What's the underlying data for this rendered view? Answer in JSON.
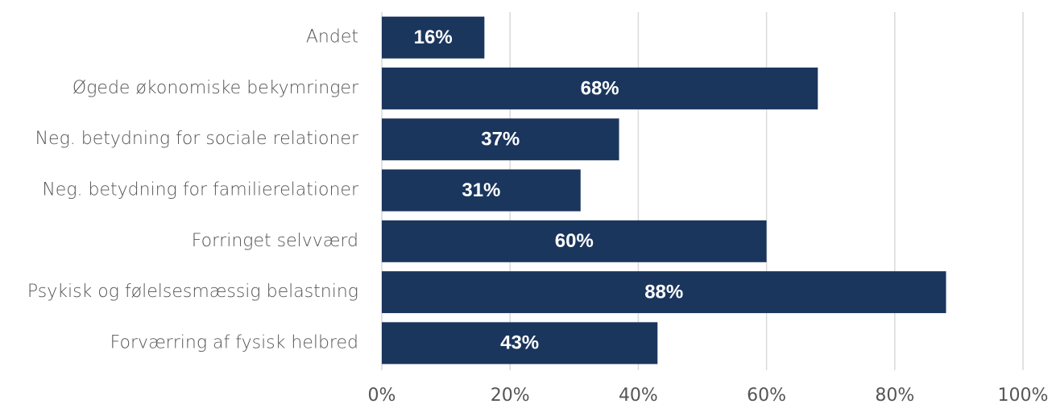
{
  "chart_data": {
    "type": "bar",
    "orientation": "horizontal",
    "categories": [
      "Andet",
      "Øgede økonomiske bekymringer",
      "Neg. betydning for sociale relationer",
      "Neg. betydning for familierelationer",
      "Forringet selvværd",
      "Psykisk og følelsesmæssig belastning",
      "Forværring af fysisk helbred"
    ],
    "values": [
      16,
      68,
      37,
      31,
      60,
      88,
      43
    ],
    "value_labels": [
      "16%",
      "68%",
      "37%",
      "31%",
      "60%",
      "88%",
      "43%"
    ],
    "color": "#1b365d",
    "xlim": [
      0,
      100
    ],
    "xticks": [
      {
        "value": 0,
        "label": "0%"
      },
      {
        "value": 20,
        "label": "20%"
      },
      {
        "value": 40,
        "label": "40%"
      },
      {
        "value": 60,
        "label": "60%"
      },
      {
        "value": 80,
        "label": "80%"
      },
      {
        "value": 100,
        "label": "100%"
      }
    ],
    "grid": true
  }
}
